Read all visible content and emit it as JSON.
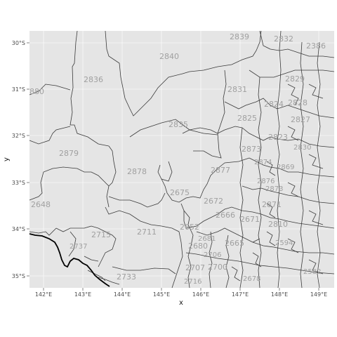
{
  "chart_data": {
    "type": "map",
    "xlabel": "x",
    "ylabel": "y",
    "x_ticks": [
      "142°E",
      "143°E",
      "144°E",
      "145°E",
      "146°E",
      "147°E",
      "148°E",
      "149°E"
    ],
    "y_ticks": [
      "30°S",
      "31°S",
      "32°S",
      "33°S",
      "34°S",
      "35°S"
    ],
    "region_labels": [
      "2839",
      "2832",
      "2386",
      "2840",
      "2836",
      "2829",
      "880",
      "2831",
      "2824",
      "2828",
      "2835",
      "2825",
      "2827",
      "2879",
      "2873",
      "2823",
      "2830",
      "2878",
      "2877",
      "2874",
      "2869",
      "2876",
      "2675",
      "2648",
      "2672",
      "2873",
      "2871",
      "2666",
      "2671",
      "2810",
      "2711",
      "2652",
      "2715",
      "2737",
      "2681",
      "2665",
      "2680",
      "2594",
      "2706",
      "2707",
      "2700",
      "2582",
      "2733",
      "2716",
      "2678"
    ],
    "colors": {
      "panel_background": "#e5e5e5",
      "border": "#3a3a3a",
      "label": "#a0a0a0",
      "river": "#000000"
    },
    "grid": true
  }
}
